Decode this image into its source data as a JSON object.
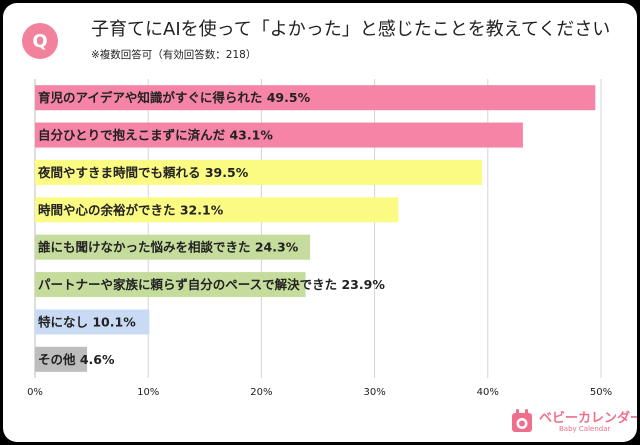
{
  "header": {
    "badge": "Q",
    "title": "子育てにAIを使って「よかった」と感じたことを教えてください",
    "subtitle": "※複数回答可（有効回答数：218）"
  },
  "brand": {
    "name": "ベビーカレンダー",
    "sub": "Baby Calendar",
    "color": "#ef6f8a"
  },
  "chart_data": {
    "type": "bar",
    "orientation": "horizontal",
    "title": "子育てにAIを使って「よかった」と感じたことを教えてください",
    "xlabel": "",
    "ylabel": "",
    "xlim": [
      0,
      50
    ],
    "ticks": [
      0,
      10,
      20,
      30,
      40,
      50
    ],
    "tick_labels": [
      "0%",
      "10%",
      "20%",
      "30%",
      "40%",
      "50%"
    ],
    "grid": true,
    "categories": [
      "育児のアイデアや知識がすぐに得られた",
      "自分ひとりで抱えこまずに済んだ",
      "夜間やすきま時間でも頼れる",
      "時間や心の余裕ができた",
      "誰にも聞けなかった悩みを相談できた",
      "パートナーや家族に頼らず自分のペースで解決できた",
      "特になし",
      "その他"
    ],
    "values": [
      49.5,
      43.1,
      39.5,
      32.1,
      24.3,
      23.9,
      10.1,
      4.6
    ],
    "value_labels": [
      "49.5%",
      "43.1%",
      "39.5%",
      "32.1%",
      "24.3%",
      "23.9%",
      "10.1%",
      "4.6%"
    ],
    "colors": [
      "#f584a6",
      "#f584a6",
      "#fbfb84",
      "#fbfb84",
      "#c5dc9c",
      "#c5dc9c",
      "#c9daf4",
      "#bdbdbd"
    ]
  }
}
